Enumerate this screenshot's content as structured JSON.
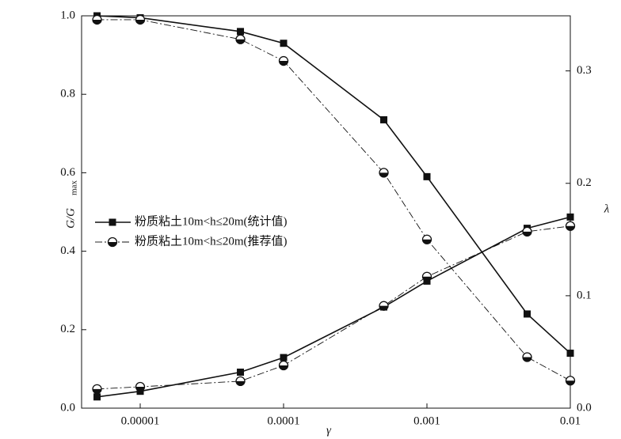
{
  "chart_data": {
    "type": "line",
    "xlabel": "γ",
    "ylabel": "G/G",
    "ylabel_sub": "max",
    "y2label": "λ",
    "log_x": true,
    "x": [
      5e-06,
      1e-05,
      5e-05,
      0.0001,
      0.0005,
      0.001,
      0.005,
      0.01
    ],
    "xlim": [
      3.9e-06,
      0.01
    ],
    "xticks": [
      {
        "value": 1e-05,
        "label": "0.00001"
      },
      {
        "value": 0.0001,
        "label": "0.0001"
      },
      {
        "value": 0.001,
        "label": "0.001"
      },
      {
        "value": 0.01,
        "label": "0.01"
      }
    ],
    "ylim": [
      0,
      1.0
    ],
    "yticks": [
      {
        "value": 0,
        "label": "0.0"
      },
      {
        "value": 0.2,
        "label": "0.2"
      },
      {
        "value": 0.4,
        "label": "0.4"
      },
      {
        "value": 0.6,
        "label": "0.6"
      },
      {
        "value": 0.8,
        "label": "0.8"
      },
      {
        "value": 1.0,
        "label": "1.0"
      }
    ],
    "y2lim": [
      0,
      0.349
    ],
    "y2ticks": [
      {
        "value": 0,
        "label": "0.0"
      },
      0.1,
      0.2,
      0.3
    ],
    "series": [
      {
        "name": "粉质粘土10m<h≤20m(统计值)",
        "color": "#111111",
        "marker": "square",
        "dash": "solid",
        "values": [
          1.0,
          0.995,
          0.96,
          0.93,
          0.735,
          0.59,
          0.24,
          0.14
        ]
      },
      {
        "name": "粉质粘土10m<h≤20m(推荐值)",
        "color": "#111111",
        "marker": "half-circle",
        "dash": "dashdot",
        "values": [
          0.99,
          0.99,
          0.94,
          0.885,
          0.6,
          0.43,
          0.13,
          0.07
        ]
      },
      {
        "color": "#111111",
        "marker": "square",
        "dash": "solid",
        "axis": "y2",
        "values": [
          0.01,
          0.015,
          0.032,
          0.045,
          0.09,
          0.113,
          0.16,
          0.17
        ]
      },
      {
        "color": "#111111",
        "marker": "half-circle",
        "dash": "dashdot",
        "axis": "y2",
        "values": [
          0.017,
          0.019,
          0.024,
          0.038,
          0.091,
          0.117,
          0.157,
          0.162
        ]
      }
    ]
  }
}
